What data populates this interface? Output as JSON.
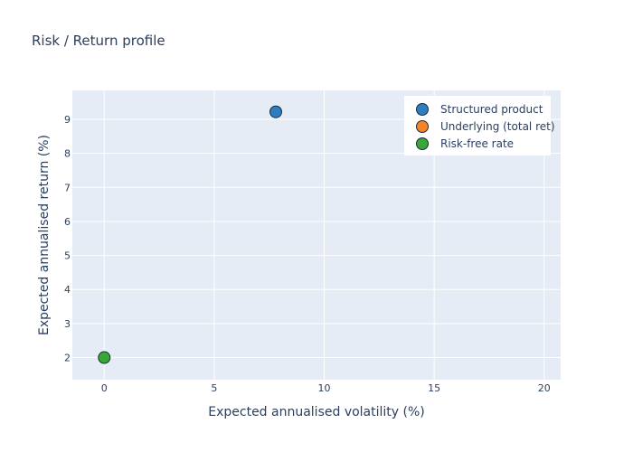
{
  "chart_data": {
    "type": "scatter",
    "title": "Risk / Return profile",
    "xlabel": "Expected annualised volatility (%)",
    "ylabel": "Expected annualised return (%)",
    "xlim": [
      -1.45,
      20.75
    ],
    "ylim": [
      1.35,
      9.85
    ],
    "x_ticks": [
      0,
      5,
      10,
      15,
      20
    ],
    "y_ticks": [
      2,
      3,
      4,
      5,
      6,
      7,
      8,
      9
    ],
    "grid": true,
    "legend_position": "top-right",
    "series": [
      {
        "name": "Structured product",
        "color": "#2e7dc0",
        "points": [
          {
            "x": 7.8,
            "y": 9.22
          }
        ]
      },
      {
        "name": "Underlying (total ret)",
        "color": "#f5842a",
        "points": []
      },
      {
        "name": "Risk-free rate",
        "color": "#3aa63a",
        "points": [
          {
            "x": 0.0,
            "y": 2.0
          }
        ]
      }
    ]
  }
}
